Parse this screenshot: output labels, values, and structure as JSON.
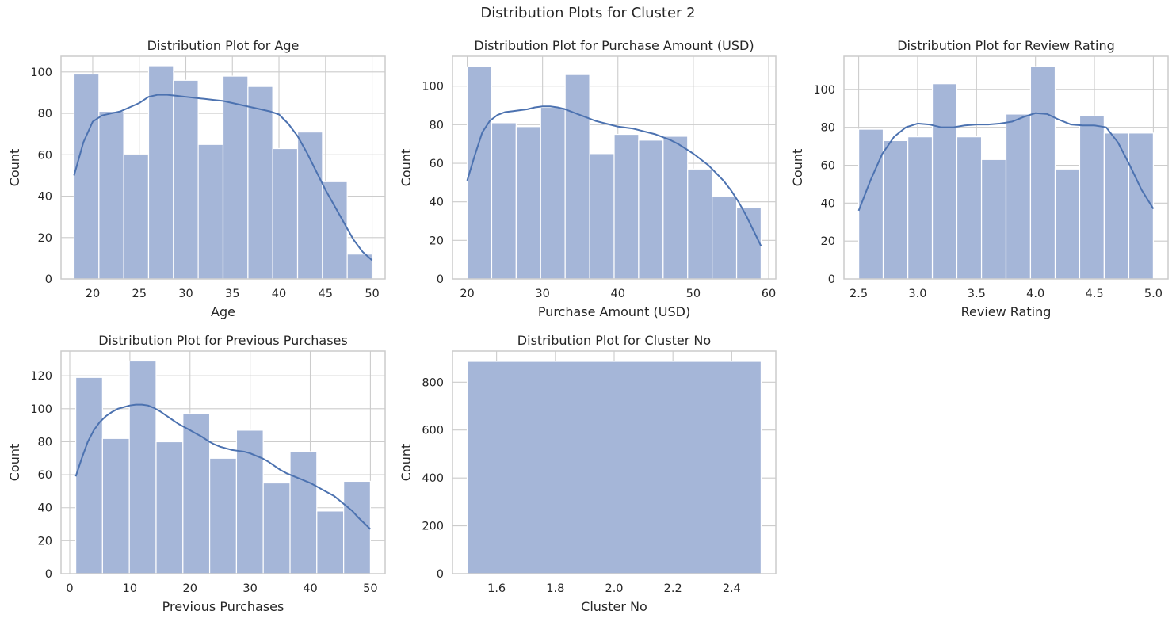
{
  "figure": {
    "title": "Distribution Plots for Cluster 2"
  },
  "colors": {
    "bar_fill": "#a5b6d8",
    "bar_edge": "#ffffff",
    "kde_line": "#4c72b0",
    "grid": "#cccccc",
    "axes_edge": "#cccccc",
    "background": "#ffffff"
  },
  "chart_data": [
    {
      "type": "histogram",
      "title": "Distribution Plot for Age",
      "xlabel": "Age",
      "ylabel": "Count",
      "xlim": [
        16.6,
        51.4
      ],
      "ylim": [
        0,
        107.6
      ],
      "xticks": [
        20,
        25,
        30,
        35,
        40,
        45,
        50
      ],
      "yticks": [
        0,
        20,
        40,
        60,
        80,
        100
      ],
      "grid": true,
      "bins": [
        {
          "x0": 18.0,
          "x1": 20.67,
          "count": 99
        },
        {
          "x0": 20.67,
          "x1": 23.33,
          "count": 81
        },
        {
          "x0": 23.33,
          "x1": 26.0,
          "count": 60
        },
        {
          "x0": 26.0,
          "x1": 28.67,
          "count": 103
        },
        {
          "x0": 28.67,
          "x1": 31.33,
          "count": 96
        },
        {
          "x0": 31.33,
          "x1": 34.0,
          "count": 65
        },
        {
          "x0": 34.0,
          "x1": 36.67,
          "count": 98
        },
        {
          "x0": 36.67,
          "x1": 39.33,
          "count": 93
        },
        {
          "x0": 39.33,
          "x1": 42.0,
          "count": 63
        },
        {
          "x0": 42.0,
          "x1": 44.67,
          "count": 71
        },
        {
          "x0": 44.67,
          "x1": 47.33,
          "count": 47
        },
        {
          "x0": 47.33,
          "x1": 50.0,
          "count": 12
        }
      ],
      "kde": {
        "x": [
          18,
          19,
          20,
          21,
          22,
          23,
          24,
          25,
          26,
          27,
          28,
          29,
          30,
          31,
          32,
          33,
          34,
          35,
          36,
          37,
          38,
          39,
          40,
          41,
          42,
          43,
          44,
          45,
          46,
          47,
          48,
          49,
          50
        ],
        "y": [
          50,
          66,
          76,
          79,
          80,
          81,
          83,
          85,
          88,
          89,
          89,
          88.5,
          88,
          87.5,
          87,
          86.5,
          86,
          85,
          84,
          83,
          82,
          81,
          79.5,
          75,
          69,
          61,
          52,
          43,
          35,
          27,
          19,
          13,
          9
        ]
      }
    },
    {
      "type": "histogram",
      "title": "Distribution Plot for Purchase Amount (USD)",
      "xlabel": "Purchase Amount (USD)",
      "ylabel": "Count",
      "xlim": [
        18.05,
        60.95
      ],
      "ylim": [
        0,
        115.5
      ],
      "xticks": [
        20,
        30,
        40,
        50,
        60
      ],
      "yticks": [
        0,
        20,
        40,
        60,
        80,
        100
      ],
      "grid": true,
      "bins": [
        {
          "x0": 20.0,
          "x1": 23.25,
          "count": 110
        },
        {
          "x0": 23.25,
          "x1": 26.5,
          "count": 81
        },
        {
          "x0": 26.5,
          "x1": 29.75,
          "count": 79
        },
        {
          "x0": 29.75,
          "x1": 33.0,
          "count": 89
        },
        {
          "x0": 33.0,
          "x1": 36.25,
          "count": 106
        },
        {
          "x0": 36.25,
          "x1": 39.5,
          "count": 65
        },
        {
          "x0": 39.5,
          "x1": 42.75,
          "count": 75
        },
        {
          "x0": 42.75,
          "x1": 46.0,
          "count": 72
        },
        {
          "x0": 46.0,
          "x1": 49.25,
          "count": 74
        },
        {
          "x0": 49.25,
          "x1": 52.5,
          "count": 57
        },
        {
          "x0": 52.5,
          "x1": 55.75,
          "count": 43
        },
        {
          "x0": 55.75,
          "x1": 59.0,
          "count": 37
        }
      ],
      "kde": {
        "x": [
          20,
          21,
          22,
          23,
          24,
          25,
          26,
          27,
          28,
          29,
          30,
          31,
          32,
          33,
          34,
          35,
          36,
          37,
          38,
          39,
          40,
          41,
          42,
          43,
          44,
          45,
          46,
          47,
          48,
          49,
          50,
          51,
          52,
          53,
          54,
          55,
          56,
          57,
          58,
          59
        ],
        "y": [
          51,
          64,
          76,
          82,
          85,
          86.5,
          87,
          87.5,
          88,
          89,
          89.5,
          89.5,
          89,
          88,
          86.5,
          85,
          83.5,
          82,
          81,
          80,
          79,
          78.5,
          78,
          77,
          76,
          75,
          73.5,
          72,
          70,
          67.5,
          65,
          62,
          59,
          55,
          51,
          46,
          40,
          33,
          25,
          17
        ]
      }
    },
    {
      "type": "histogram",
      "title": "Distribution Plot for Review Rating",
      "xlabel": "Review Rating",
      "ylabel": "Count",
      "xlim": [
        2.375,
        5.125
      ],
      "ylim": [
        0,
        117.5
      ],
      "xticks": [
        2.5,
        3.0,
        3.5,
        4.0,
        4.5,
        5.0
      ],
      "yticks": [
        0,
        20,
        40,
        60,
        80,
        100
      ],
      "grid": true,
      "bins": [
        {
          "x0": 2.5,
          "x1": 2.708,
          "count": 79
        },
        {
          "x0": 2.708,
          "x1": 2.917,
          "count": 73
        },
        {
          "x0": 2.917,
          "x1": 3.125,
          "count": 75
        },
        {
          "x0": 3.125,
          "x1": 3.333,
          "count": 103
        },
        {
          "x0": 3.333,
          "x1": 3.542,
          "count": 75
        },
        {
          "x0": 3.542,
          "x1": 3.75,
          "count": 63
        },
        {
          "x0": 3.75,
          "x1": 3.958,
          "count": 87
        },
        {
          "x0": 3.958,
          "x1": 4.167,
          "count": 112
        },
        {
          "x0": 4.167,
          "x1": 4.375,
          "count": 58
        },
        {
          "x0": 4.375,
          "x1": 4.583,
          "count": 86
        },
        {
          "x0": 4.583,
          "x1": 4.792,
          "count": 77
        },
        {
          "x0": 4.792,
          "x1": 5.0,
          "count": 77
        }
      ],
      "kde": {
        "x": [
          2.5,
          2.6,
          2.7,
          2.8,
          2.9,
          3.0,
          3.1,
          3.2,
          3.3,
          3.4,
          3.5,
          3.6,
          3.7,
          3.8,
          3.9,
          4.0,
          4.1,
          4.2,
          4.3,
          4.4,
          4.5,
          4.6,
          4.7,
          4.8,
          4.9,
          5.0
        ],
        "y": [
          36,
          52,
          66,
          75,
          80,
          82,
          81.5,
          80,
          80,
          81,
          81.5,
          81.5,
          82,
          83,
          85.5,
          87.5,
          87,
          84,
          81.5,
          81,
          81,
          80,
          72,
          60,
          47,
          37
        ]
      }
    },
    {
      "type": "histogram",
      "title": "Distribution Plot for Previous Purchases",
      "xlabel": "Previous Purchases",
      "ylabel": "Count",
      "xlim": [
        -1.45,
        52.45
      ],
      "ylim": [
        0,
        135
      ],
      "xticks": [
        0,
        10,
        20,
        30,
        40,
        50
      ],
      "yticks": [
        0,
        20,
        40,
        60,
        80,
        100,
        120
      ],
      "grid": true,
      "bins": [
        {
          "x0": 1.0,
          "x1": 5.45,
          "count": 119
        },
        {
          "x0": 5.45,
          "x1": 9.91,
          "count": 82
        },
        {
          "x0": 9.91,
          "x1": 14.36,
          "count": 129
        },
        {
          "x0": 14.36,
          "x1": 18.82,
          "count": 80
        },
        {
          "x0": 18.82,
          "x1": 23.27,
          "count": 97
        },
        {
          "x0": 23.27,
          "x1": 27.73,
          "count": 70
        },
        {
          "x0": 27.73,
          "x1": 32.18,
          "count": 87
        },
        {
          "x0": 32.18,
          "x1": 36.64,
          "count": 55
        },
        {
          "x0": 36.64,
          "x1": 41.09,
          "count": 74
        },
        {
          "x0": 41.09,
          "x1": 45.55,
          "count": 38
        },
        {
          "x0": 45.55,
          "x1": 50.0,
          "count": 56
        }
      ],
      "kde": {
        "x": [
          1,
          2,
          3,
          4,
          5,
          6,
          7,
          8,
          9,
          10,
          11,
          12,
          13,
          14,
          15,
          16,
          17,
          18,
          19,
          20,
          21,
          22,
          23,
          24,
          25,
          26,
          27,
          28,
          29,
          30,
          31,
          32,
          33,
          34,
          35,
          36,
          37,
          38,
          39,
          40,
          41,
          42,
          43,
          44,
          45,
          46,
          47,
          48,
          49,
          50
        ],
        "y": [
          59,
          70,
          80,
          87,
          92,
          95.5,
          98,
          100,
          101,
          102,
          102.5,
          102.5,
          102,
          100.5,
          98.5,
          96,
          93.5,
          91,
          89,
          87,
          85,
          83,
          80.5,
          78.5,
          77,
          76,
          75,
          74.5,
          74,
          73,
          71.5,
          70,
          68,
          65.5,
          63,
          61,
          59.5,
          58,
          56.5,
          55,
          53,
          51,
          49,
          47,
          44,
          41,
          38,
          34,
          30.5,
          27
        ]
      }
    },
    {
      "type": "histogram",
      "title": "Distribution Plot for Cluster No",
      "xlabel": "Cluster No",
      "ylabel": "Count",
      "xlim": [
        1.45,
        2.55
      ],
      "ylim": [
        0,
        930
      ],
      "xticks": [
        1.6,
        1.8,
        2.0,
        2.2,
        2.4
      ],
      "yticks": [
        0,
        200,
        400,
        600,
        800
      ],
      "grid": true,
      "bins": [
        {
          "x0": 1.5,
          "x1": 2.5,
          "count": 887
        }
      ],
      "kde": null
    }
  ]
}
